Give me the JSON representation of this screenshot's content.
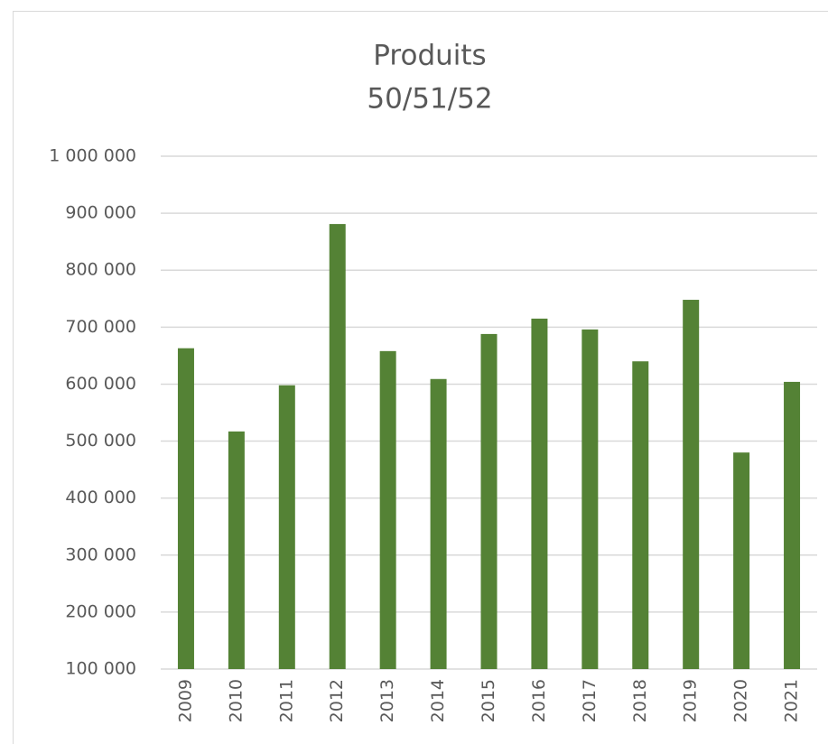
{
  "chart_data": {
    "type": "bar",
    "title": "Produits",
    "subtitle": "50/51/52",
    "categories": [
      "2009",
      "2010",
      "2011",
      "2012",
      "2013",
      "2014",
      "2015",
      "2016",
      "2017",
      "2018",
      "2019",
      "2020",
      "2021"
    ],
    "values": [
      663000,
      517000,
      598000,
      881000,
      658000,
      609000,
      688000,
      715000,
      696000,
      640000,
      748000,
      480000,
      604000
    ],
    "color": "#548235",
    "ylim": [
      100000,
      1000000
    ],
    "yticks": [
      {
        "value": 100000,
        "label": "100 000"
      },
      {
        "value": 200000,
        "label": "200 000"
      },
      {
        "value": 300000,
        "label": "300 000"
      },
      {
        "value": 400000,
        "label": "400 000"
      },
      {
        "value": 500000,
        "label": "500 000"
      },
      {
        "value": 600000,
        "label": "600 000"
      },
      {
        "value": 700000,
        "label": "700 000"
      },
      {
        "value": 800000,
        "label": "800 000"
      },
      {
        "value": 900000,
        "label": "900 000"
      },
      {
        "value": 1000000,
        "label": "1 000 000"
      }
    ],
    "grid": true
  }
}
